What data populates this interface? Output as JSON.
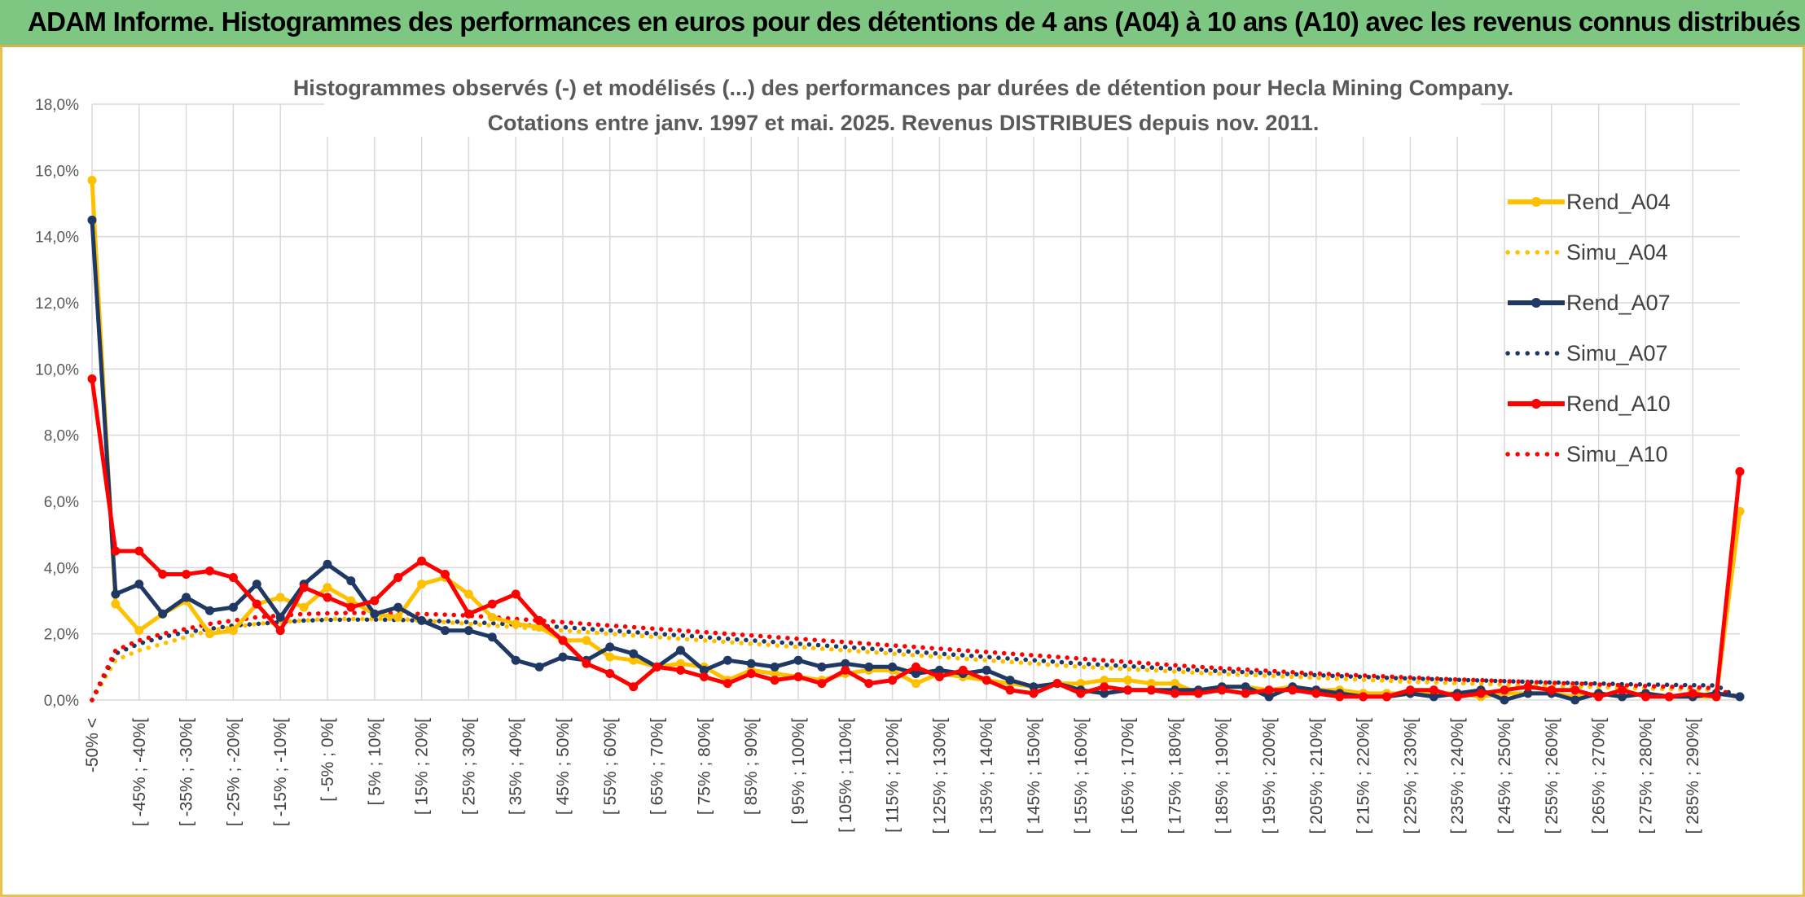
{
  "header": {
    "title": "ADAM Informe. Histogrammes des performances en euros pour des détentions de 4 ans (A04) à 10 ans (A10) avec les revenus connus distribués"
  },
  "chart_data": {
    "type": "line",
    "title": "Histogrammes observés (-) et modélisés (...) des performances par durées de détention pour Hecla Mining Company.",
    "subtitle": "Cotations entre janv. 1997 et mai. 2025. Revenus DISTRIBUES depuis nov. 2011.",
    "ylim": [
      0,
      18
    ],
    "y_ticks": [
      "0,0%",
      "2,0%",
      "4,0%",
      "6,0%",
      "8,0%",
      "10,0%",
      "12,0%",
      "14,0%",
      "16,0%",
      "18,0%"
    ],
    "grid": true,
    "legend_position": "right",
    "categories": [
      "-50% <",
      "[ -50% ; -45%[",
      "[ -45% ; -40%[",
      "[ -40% ; -35%[",
      "[ -35% ; -30%[",
      "[ -30% ; -25%[",
      "[ -25% ; -20%[",
      "[ -20% ; -15%[",
      "[ -15% ; -10%[",
      "[ -10% ; -5%[",
      "[ -5% ; 0%[",
      "[ 0% ; 5%[",
      "[ 5% ; 10%[",
      "[ 10% ; 15%[",
      "[ 15% ; 20%[",
      "[ 20% ; 25%[",
      "[ 25% ; 30%[",
      "[ 30% ; 35%[",
      "[ 35% ; 40%[",
      "[ 40% ; 45%[",
      "[ 45% ; 50%[",
      "[ 50% ; 55%[",
      "[ 55% ; 60%[",
      "[ 60% ; 65%[",
      "[ 65% ; 70%[",
      "[ 70% ; 75%[",
      "[ 75% ; 80%[",
      "[ 80% ; 85%[",
      "[ 85% ; 90%[",
      "[ 90% ; 95%[",
      "[ 95% ; 100%[",
      "[ 100% ; 105%[",
      "[ 105% ; 110%[",
      "[ 110% ; 115%[",
      "[ 115% ; 120%[",
      "[ 120% ; 125%[",
      "[ 125% ; 130%[",
      "[ 130% ; 135%[",
      "[ 135% ; 140%[",
      "[ 140% ; 145%[",
      "[ 145% ; 150%[",
      "[ 150% ; 155%[",
      "[ 155% ; 160%[",
      "[ 160% ; 165%[",
      "[ 165% ; 170%[",
      "[ 170% ; 175%[",
      "[ 175% ; 180%[",
      "[ 180% ; 185%[",
      "[ 185% ; 190%[",
      "[ 190% ; 195%[",
      "[ 195% ; 200%[",
      "[ 200% ; 205%[",
      "[ 205% ; 210%[",
      "[ 210% ; 215%[",
      "[ 215% ; 220%[",
      "[ 220% ; 225%[",
      "[ 225% ; 230%[",
      "[ 230% ; 235%[",
      "[ 235% ; 240%[",
      "[ 240% ; 245%[",
      "[ 245% ; 250%[",
      "[ 250% ; 255%[",
      "[ 255% ; 260%[",
      "[ 260% ; 265%[",
      "[ 265% ; 270%[",
      "[ 270% ; 275%[",
      "[ 275% ; 280%[",
      "[ 280% ; 285%[",
      "[ 285% ; 290%[",
      "[ 290% ; 295%[",
      "[ 295% ; 300%["
    ],
    "x_tick_labels": [
      {
        "index": 0,
        "label": "-50% <"
      },
      {
        "index": 2,
        "label": "[ -45% ; -40%["
      },
      {
        "index": 4,
        "label": "[ -35% ; -30%["
      },
      {
        "index": 6,
        "label": "[ -25% ; -20%["
      },
      {
        "index": 8,
        "label": "[ -15% ; -10%["
      },
      {
        "index": 10,
        "label": "[ -5% ; 0%["
      },
      {
        "index": 12,
        "label": "[ 5% ; 10%["
      },
      {
        "index": 14,
        "label": "[ 15% ; 20%["
      },
      {
        "index": 16,
        "label": "[ 25% ; 30%["
      },
      {
        "index": 18,
        "label": "[ 35% ; 40%["
      },
      {
        "index": 20,
        "label": "[ 45% ; 50%["
      },
      {
        "index": 22,
        "label": "[ 55% ; 60%["
      },
      {
        "index": 24,
        "label": "[ 65% ; 70%["
      },
      {
        "index": 26,
        "label": "[ 75% ; 80%["
      },
      {
        "index": 28,
        "label": "[ 85% ; 90%["
      },
      {
        "index": 30,
        "label": "[ 95% ; 100%["
      },
      {
        "index": 32,
        "label": "[ 105% ; 110%["
      },
      {
        "index": 34,
        "label": "[ 115% ; 120%["
      },
      {
        "index": 36,
        "label": "[ 125% ; 130%["
      },
      {
        "index": 38,
        "label": "[ 135% ; 140%["
      },
      {
        "index": 40,
        "label": "[ 145% ; 150%["
      },
      {
        "index": 42,
        "label": "[ 155% ; 160%["
      },
      {
        "index": 44,
        "label": "[ 165% ; 170%["
      },
      {
        "index": 46,
        "label": "[ 175% ; 180%["
      },
      {
        "index": 48,
        "label": "[ 185% ; 190%["
      },
      {
        "index": 50,
        "label": "[ 195% ; 200%["
      },
      {
        "index": 52,
        "label": "[ 205% ; 210%["
      },
      {
        "index": 54,
        "label": "[ 215% ; 220%["
      },
      {
        "index": 56,
        "label": "[ 225% ; 230%["
      },
      {
        "index": 58,
        "label": "[ 235% ; 240%["
      },
      {
        "index": 60,
        "label": "[ 245% ; 250%["
      },
      {
        "index": 62,
        "label": "[ 255% ; 260%["
      },
      {
        "index": 64,
        "label": "[ 265% ; 270%["
      },
      {
        "index": 66,
        "label": "[ 275% ; 280%["
      },
      {
        "index": 68,
        "label": "[ 285% ; 290%["
      }
    ],
    "series": [
      {
        "name": "Rend_A04",
        "color": "#ffc000",
        "style": "solid",
        "markers": true,
        "values": [
          15.7,
          2.9,
          2.1,
          2.6,
          3.0,
          2.0,
          2.1,
          2.9,
          3.1,
          2.8,
          3.4,
          3.0,
          2.6,
          2.5,
          3.5,
          3.7,
          3.2,
          2.5,
          2.3,
          2.2,
          1.8,
          1.8,
          1.3,
          1.2,
          1.0,
          1.1,
          1.0,
          0.6,
          0.9,
          0.8,
          0.7,
          0.6,
          0.8,
          0.9,
          0.9,
          0.5,
          0.8,
          0.7,
          0.6,
          0.5,
          0.4,
          0.5,
          0.5,
          0.6,
          0.6,
          0.5,
          0.5,
          0.2,
          0.4,
          0.4,
          0.3,
          0.4,
          0.3,
          0.3,
          0.2,
          0.2,
          0.2,
          0.2,
          0.2,
          0.1,
          0.2,
          0.2,
          0.2,
          0.1,
          0.2,
          0.1,
          0.2,
          0.1,
          0.1,
          0.1,
          5.7
        ]
      },
      {
        "name": "Simu_A04",
        "color": "#ffc000",
        "style": "dotted",
        "markers": false,
        "values": [
          0.0,
          1.2,
          1.5,
          1.7,
          1.9,
          2.1,
          2.2,
          2.3,
          2.35,
          2.4,
          2.45,
          2.45,
          2.45,
          2.45,
          2.4,
          2.35,
          2.3,
          2.25,
          2.2,
          2.15,
          2.1,
          2.05,
          2.0,
          1.95,
          1.9,
          1.85,
          1.8,
          1.75,
          1.7,
          1.65,
          1.6,
          1.55,
          1.5,
          1.45,
          1.4,
          1.35,
          1.3,
          1.25,
          1.2,
          1.15,
          1.1,
          1.05,
          1.0,
          0.97,
          0.93,
          0.9,
          0.86,
          0.82,
          0.79,
          0.76,
          0.73,
          0.7,
          0.67,
          0.64,
          0.61,
          0.58,
          0.55,
          0.53,
          0.51,
          0.49,
          0.47,
          0.45,
          0.43,
          0.41,
          0.39,
          0.37,
          0.35,
          0.33,
          0.32,
          0.31,
          0.05
        ]
      },
      {
        "name": "Rend_A07",
        "color": "#1f3864",
        "style": "solid",
        "markers": true,
        "values": [
          14.5,
          3.2,
          3.5,
          2.6,
          3.1,
          2.7,
          2.8,
          3.5,
          2.5,
          3.5,
          4.1,
          3.6,
          2.6,
          2.8,
          2.4,
          2.1,
          2.1,
          1.9,
          1.2,
          1.0,
          1.3,
          1.2,
          1.6,
          1.4,
          1.0,
          1.5,
          0.9,
          1.2,
          1.1,
          1.0,
          1.2,
          1.0,
          1.1,
          1.0,
          1.0,
          0.8,
          0.9,
          0.8,
          0.9,
          0.6,
          0.4,
          0.5,
          0.3,
          0.2,
          0.3,
          0.3,
          0.3,
          0.3,
          0.4,
          0.4,
          0.1,
          0.4,
          0.3,
          0.2,
          0.1,
          0.1,
          0.2,
          0.1,
          0.2,
          0.3,
          0.0,
          0.2,
          0.2,
          0.0,
          0.2,
          0.1,
          0.2,
          0.1,
          0.1,
          0.2,
          0.1
        ]
      },
      {
        "name": "Simu_A07",
        "color": "#1f3864",
        "style": "dotted",
        "markers": false,
        "values": [
          0.0,
          1.4,
          1.7,
          1.9,
          2.05,
          2.15,
          2.25,
          2.3,
          2.35,
          2.4,
          2.42,
          2.43,
          2.43,
          2.42,
          2.4,
          2.38,
          2.35,
          2.32,
          2.28,
          2.24,
          2.2,
          2.15,
          2.1,
          2.05,
          2.0,
          1.95,
          1.9,
          1.85,
          1.8,
          1.75,
          1.7,
          1.65,
          1.6,
          1.55,
          1.5,
          1.45,
          1.4,
          1.35,
          1.3,
          1.25,
          1.2,
          1.15,
          1.1,
          1.06,
          1.02,
          0.98,
          0.94,
          0.9,
          0.87,
          0.84,
          0.81,
          0.78,
          0.75,
          0.72,
          0.7,
          0.67,
          0.65,
          0.63,
          0.61,
          0.59,
          0.57,
          0.55,
          0.53,
          0.51,
          0.5,
          0.48,
          0.47,
          0.46,
          0.45,
          0.44,
          0.05
        ]
      },
      {
        "name": "Rend_A10",
        "color": "#ff0000",
        "style": "solid",
        "markers": true,
        "values": [
          9.7,
          4.5,
          4.5,
          3.8,
          3.8,
          3.9,
          3.7,
          2.9,
          2.1,
          3.4,
          3.1,
          2.8,
          3.0,
          3.7,
          4.2,
          3.8,
          2.6,
          2.9,
          3.2,
          2.4,
          1.8,
          1.1,
          0.8,
          0.4,
          1.0,
          0.9,
          0.7,
          0.5,
          0.8,
          0.6,
          0.7,
          0.5,
          0.9,
          0.5,
          0.6,
          1.0,
          0.7,
          0.9,
          0.6,
          0.3,
          0.2,
          0.5,
          0.2,
          0.4,
          0.3,
          0.3,
          0.2,
          0.2,
          0.3,
          0.2,
          0.3,
          0.3,
          0.2,
          0.1,
          0.1,
          0.1,
          0.3,
          0.3,
          0.1,
          0.2,
          0.3,
          0.4,
          0.3,
          0.3,
          0.1,
          0.3,
          0.1,
          0.1,
          0.2,
          0.1,
          6.9
        ]
      },
      {
        "name": "Simu_A10",
        "color": "#ff0000",
        "style": "dotted",
        "markers": false,
        "values": [
          0.0,
          1.5,
          1.8,
          2.0,
          2.15,
          2.3,
          2.4,
          2.5,
          2.55,
          2.6,
          2.62,
          2.63,
          2.63,
          2.62,
          2.6,
          2.58,
          2.55,
          2.5,
          2.45,
          2.4,
          2.35,
          2.3,
          2.25,
          2.2,
          2.15,
          2.1,
          2.05,
          2.0,
          1.95,
          1.9,
          1.85,
          1.8,
          1.75,
          1.7,
          1.65,
          1.6,
          1.55,
          1.5,
          1.45,
          1.4,
          1.35,
          1.3,
          1.25,
          1.2,
          1.15,
          1.1,
          1.05,
          1.0,
          0.96,
          0.92,
          0.88,
          0.84,
          0.8,
          0.77,
          0.74,
          0.71,
          0.68,
          0.65,
          0.62,
          0.6,
          0.57,
          0.55,
          0.52,
          0.5,
          0.47,
          0.45,
          0.42,
          0.4,
          0.38,
          0.36,
          0.05
        ]
      }
    ]
  }
}
